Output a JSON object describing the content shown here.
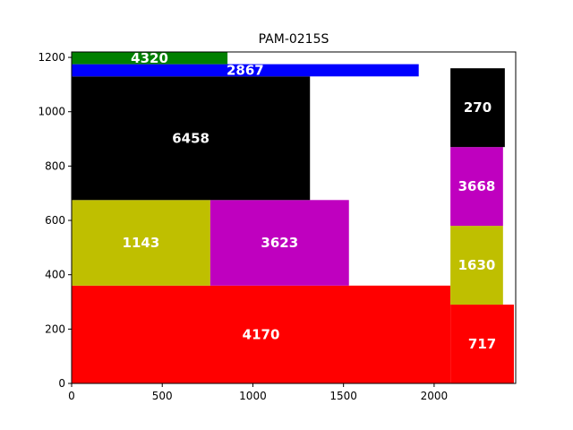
{
  "chart_data": {
    "type": "rectangles",
    "title": "PAM-0215S",
    "xlabel": "",
    "ylabel": "",
    "xlim": [
      0,
      2450
    ],
    "ylim": [
      0,
      1220
    ],
    "xticks": [
      0,
      500,
      1000,
      1500,
      2000
    ],
    "yticks": [
      0,
      200,
      400,
      600,
      800,
      1000,
      1200
    ],
    "grid": false,
    "boxes": [
      {
        "label": "4170",
        "x0": 0,
        "x1": 2090,
        "y0": 0,
        "y1": 360,
        "color": "#ff0000"
      },
      {
        "label": "717",
        "x0": 2090,
        "x1": 2440,
        "y0": 0,
        "y1": 290,
        "color": "#ff0000"
      },
      {
        "label": "1143",
        "x0": 0,
        "x1": 765,
        "y0": 360,
        "y1": 675,
        "color": "#bfbf00"
      },
      {
        "label": "3623",
        "x0": 765,
        "x1": 1530,
        "y0": 360,
        "y1": 675,
        "color": "#bf00bf"
      },
      {
        "label": "1630",
        "x0": 2090,
        "x1": 2380,
        "y0": 290,
        "y1": 580,
        "color": "#bfbf00"
      },
      {
        "label": "3668",
        "x0": 2090,
        "x1": 2380,
        "y0": 580,
        "y1": 870,
        "color": "#bf00bf"
      },
      {
        "label": "270",
        "x0": 2090,
        "x1": 2390,
        "y0": 870,
        "y1": 1160,
        "color": "#000000"
      },
      {
        "label": "6458",
        "x0": 0,
        "x1": 1315,
        "y0": 675,
        "y1": 1130,
        "color": "#000000"
      },
      {
        "label": "2867",
        "x0": 0,
        "x1": 1915,
        "y0": 1130,
        "y1": 1175,
        "color": "#0000ff"
      },
      {
        "label": "4320",
        "x0": 0,
        "x1": 860,
        "y0": 1175,
        "y1": 1220,
        "color": "#008000"
      }
    ]
  }
}
